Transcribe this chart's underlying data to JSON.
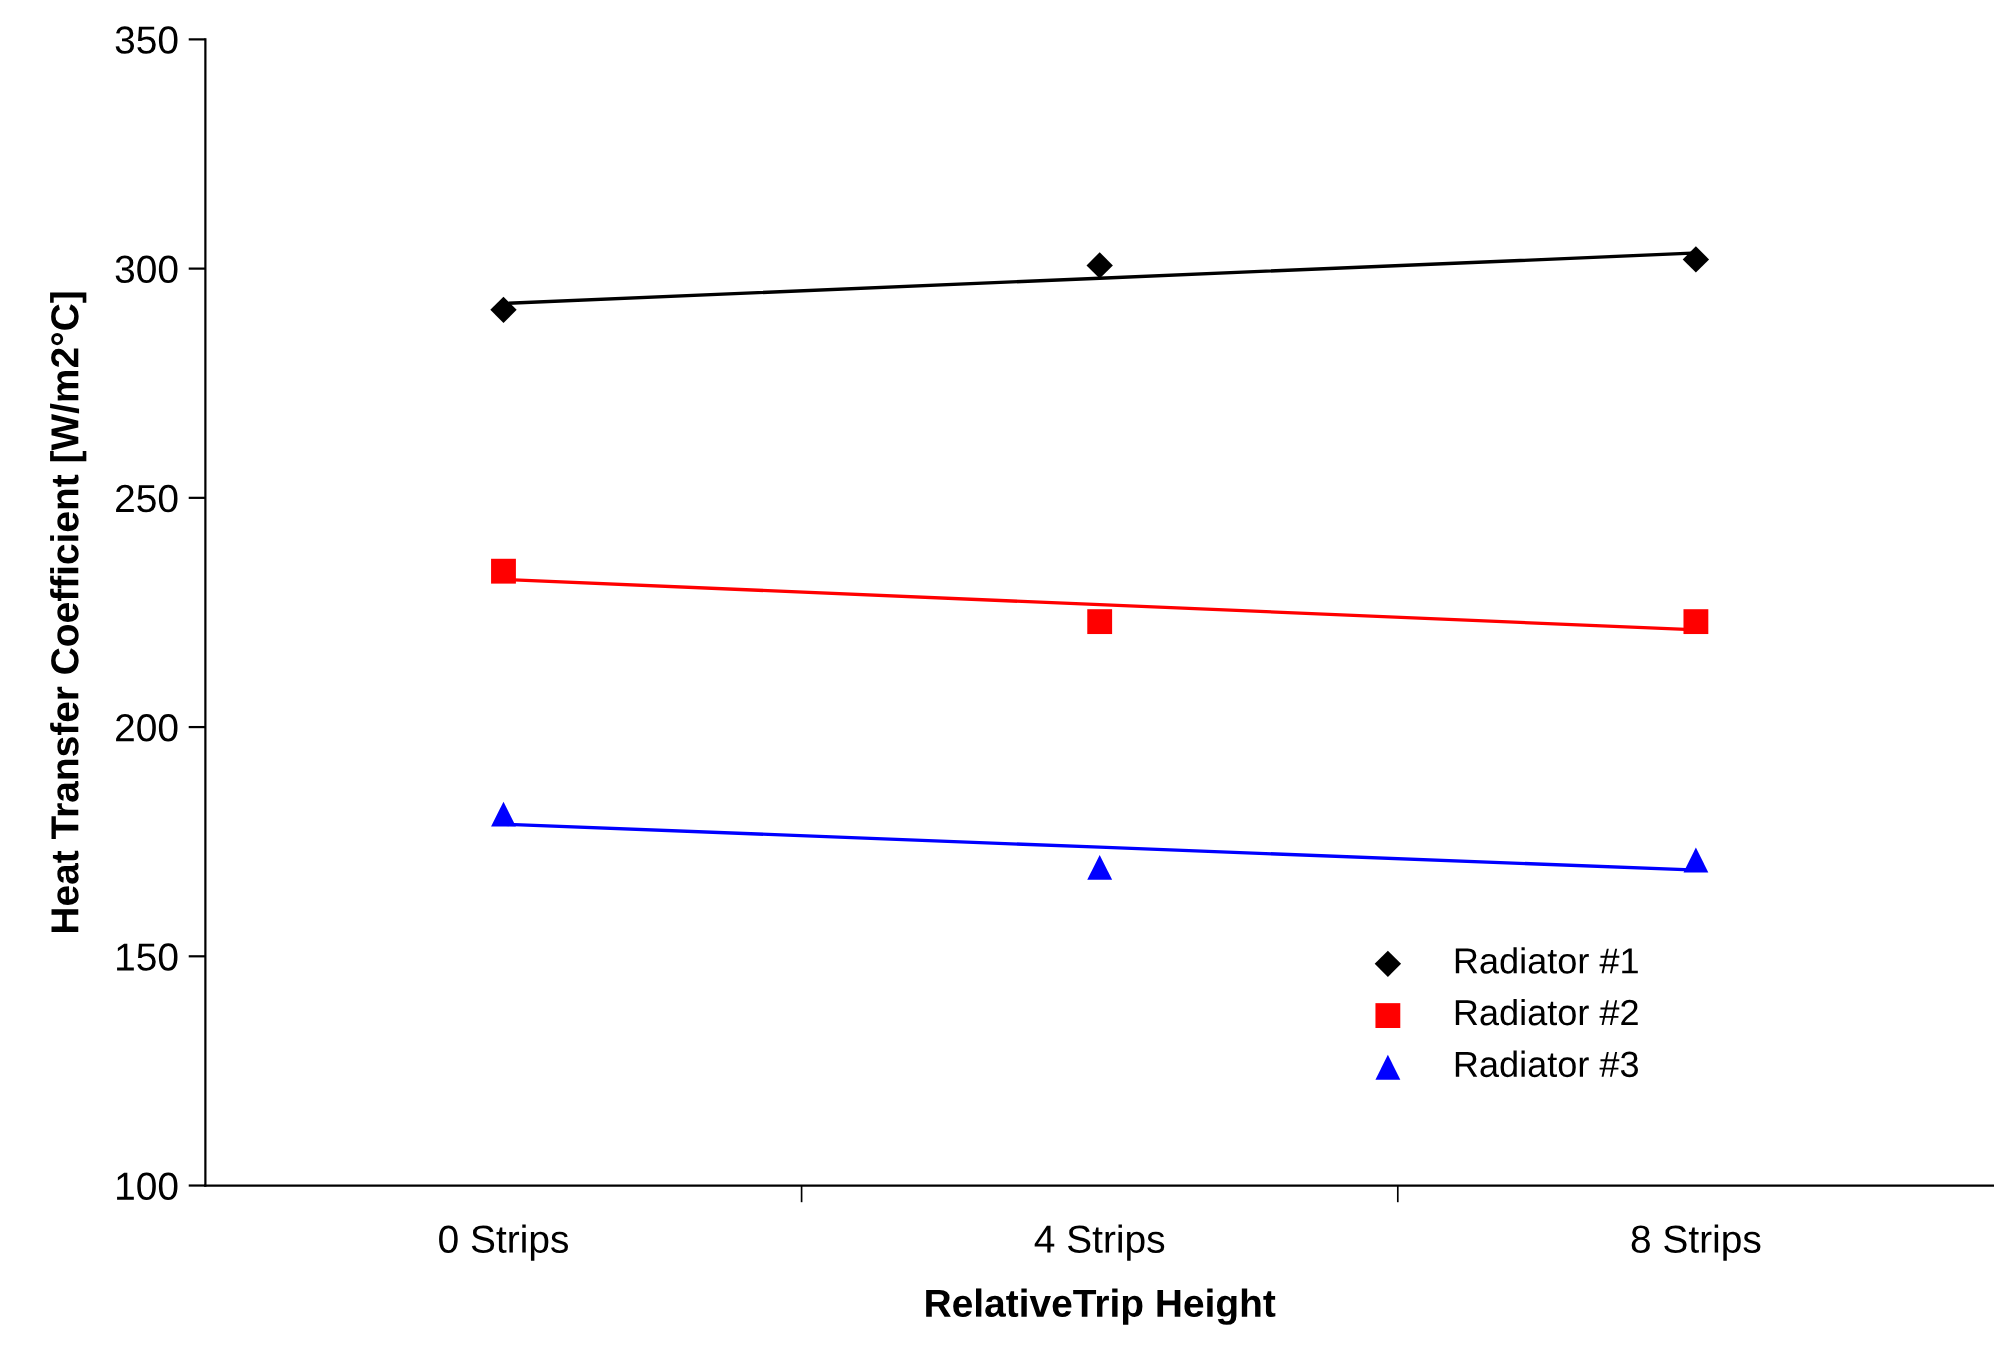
{
  "chart_data": {
    "type": "scatter",
    "xlabel": "RelativeTrip Height",
    "ylabel": "Heat Transfer Coefficient [W/m2°C]",
    "categories": [
      "0 Strips",
      "4 Strips",
      "8 Strips"
    ],
    "series": [
      {
        "name": "Radiator #1",
        "color": "#000000",
        "marker": "diamond",
        "values": [
          291,
          300.7,
          302
        ]
      },
      {
        "name": "Radiator #2",
        "color": "#ff0000",
        "marker": "square",
        "values": [
          234,
          223,
          223
        ]
      },
      {
        "name": "Radiator #3",
        "color": "#0000ff",
        "marker": "triangle",
        "values": [
          181,
          169.4,
          171
        ]
      },
      {
        "type": "line",
        "color": "#000000",
        "marker": "none",
        "values": [
          292.4,
          297.9,
          303.4
        ]
      },
      {
        "type": "line",
        "color": "#ff0000",
        "marker": "none",
        "values": [
          232.2,
          226.7,
          221.2
        ]
      },
      {
        "type": "line",
        "color": "#0000ff",
        "marker": "none",
        "values": [
          178.8,
          173.8,
          168.8
        ]
      }
    ],
    "ylim": [
      100,
      350
    ],
    "yticks": [
      100,
      150,
      200,
      250,
      300,
      350
    ],
    "grid": false,
    "legend": "bottom right"
  }
}
